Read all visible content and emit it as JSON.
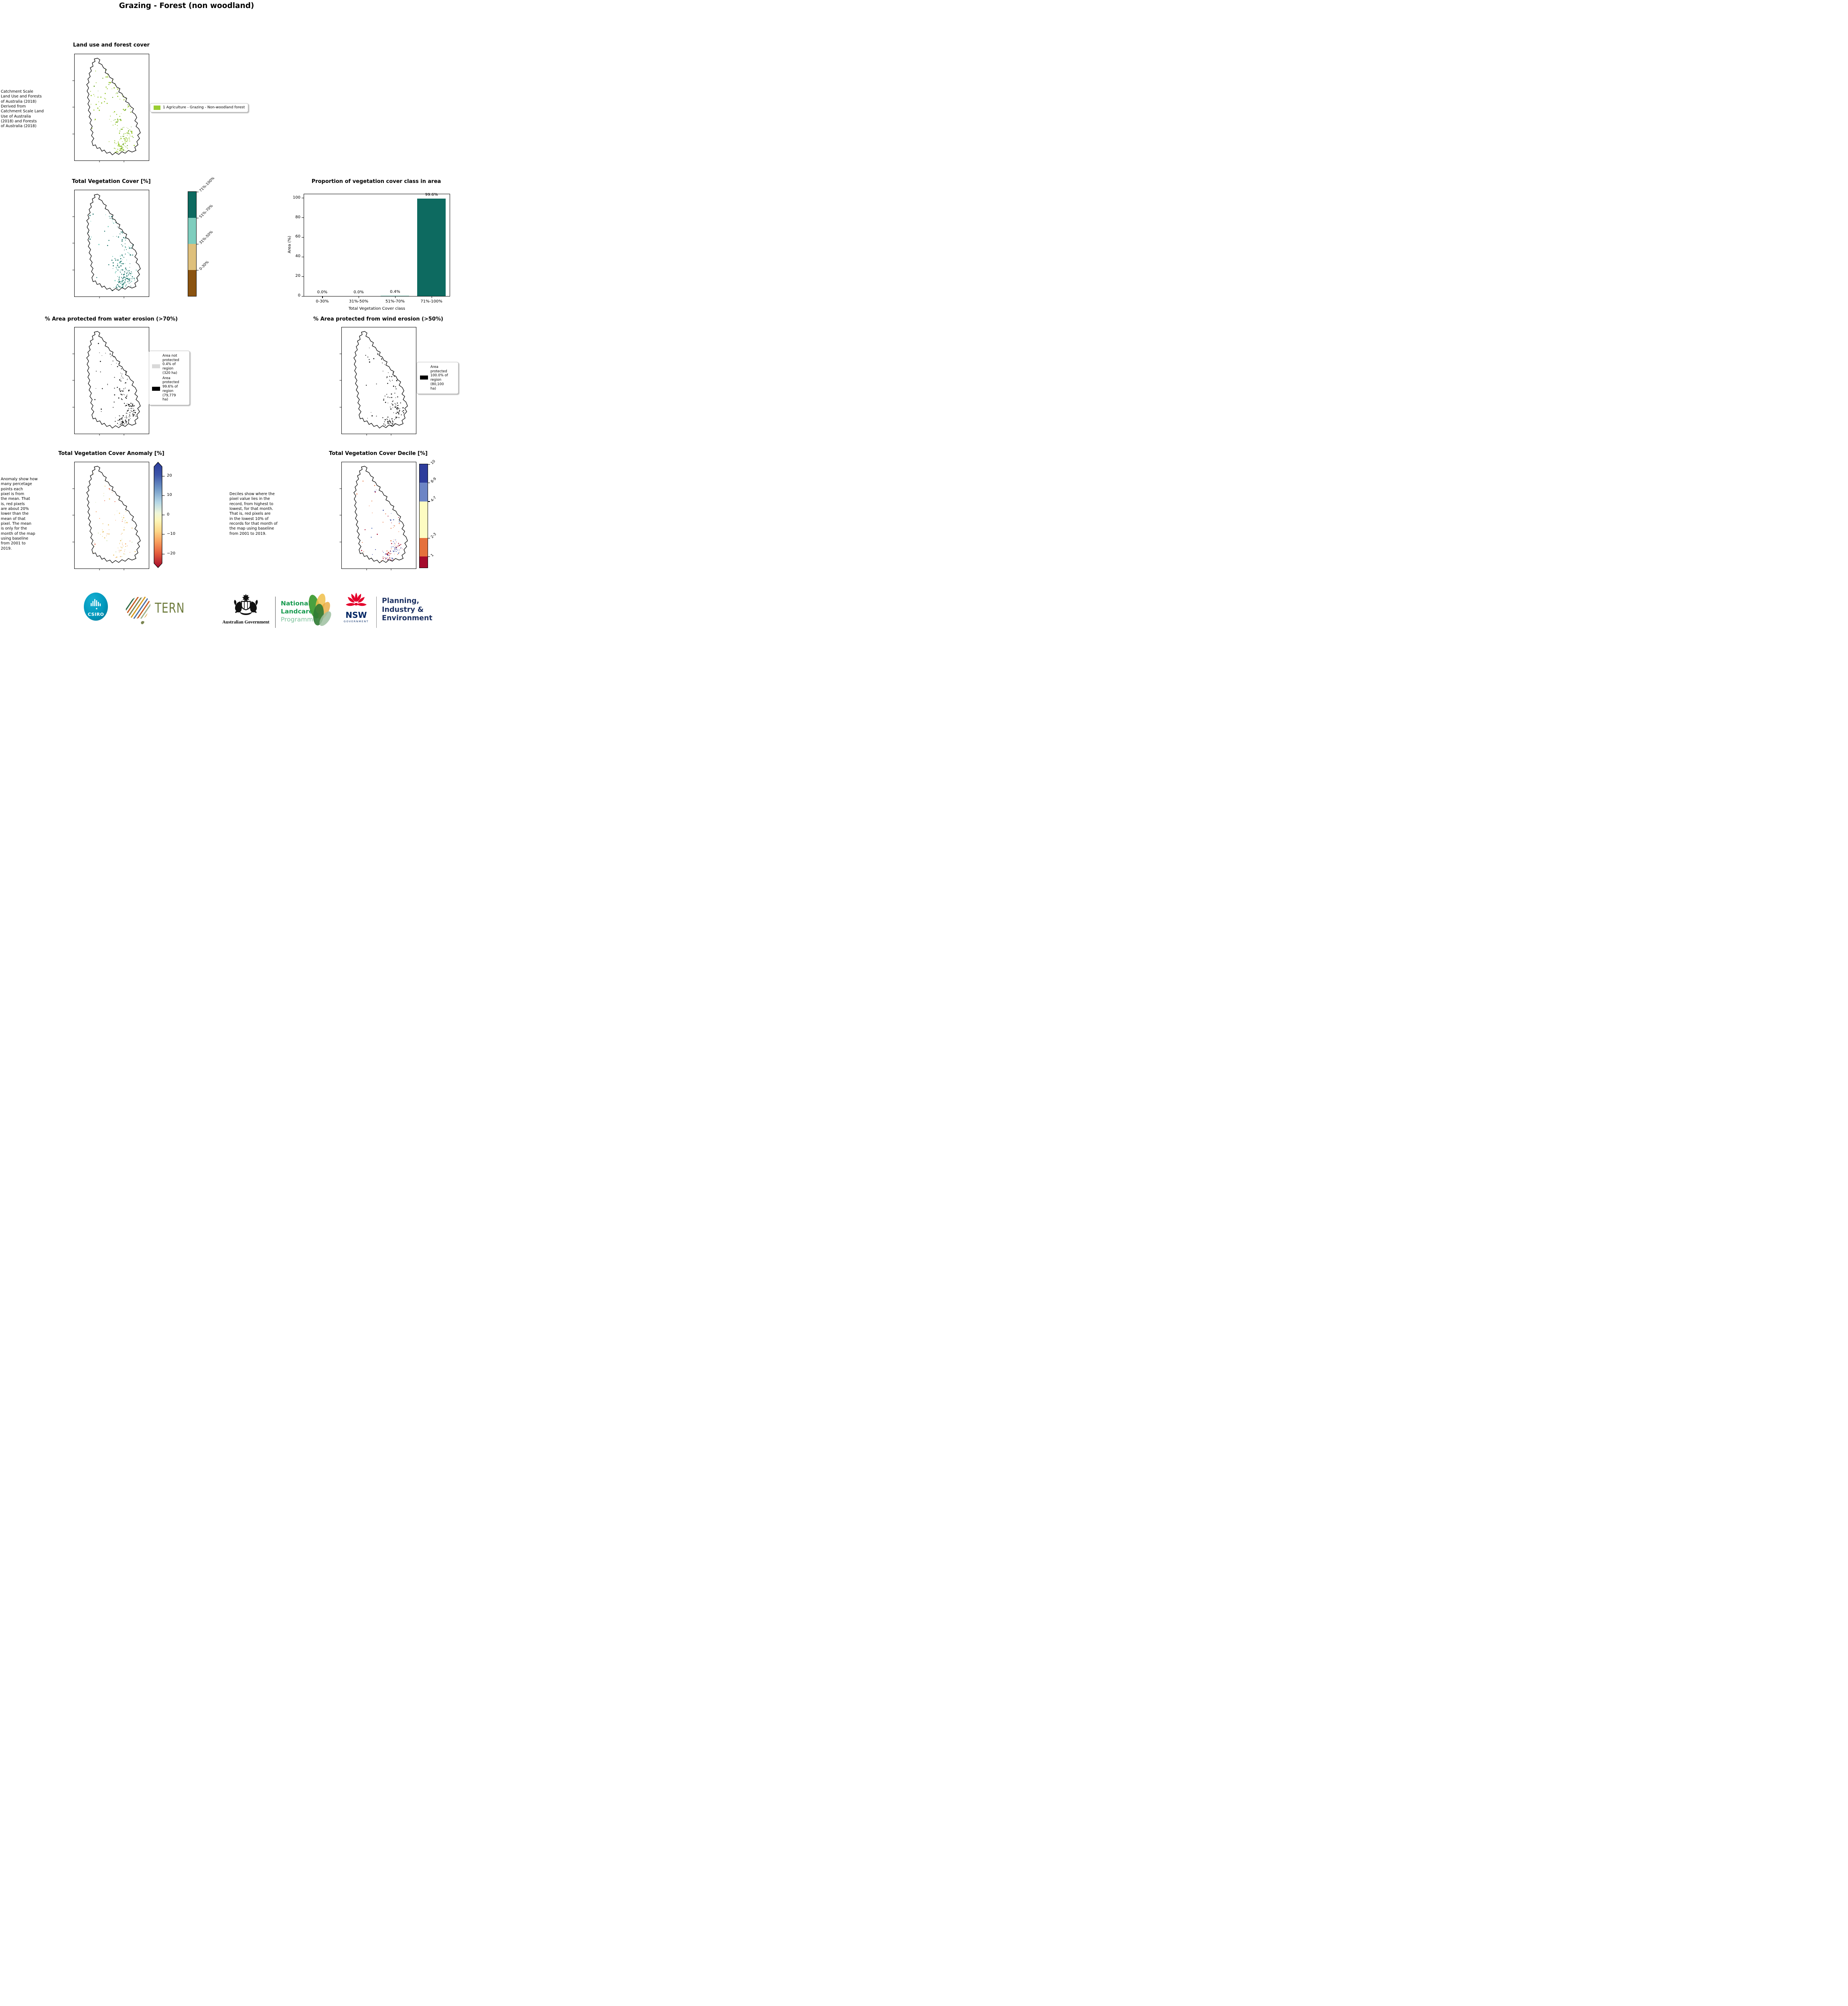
{
  "page": {
    "title": "Grazing - Forest (non woodland)"
  },
  "land_use": {
    "title": "Land use and forest cover",
    "source_note": " Catchment Scale\nLand Use and Forests\nof Australia (2018)\nDerived from\nCatchment Scale Land\nUse of Australia\n(2018) and Forests\nof Australia (2018)",
    "legend_label": "1 Agriculture - Grazing - Non-woodland forest",
    "legend_color": "#9acd32"
  },
  "veg_cover": {
    "title": "Total Vegetation Cover [%]",
    "colorbar": [
      {
        "label": "71%-100%",
        "color": "#0d6a60",
        "h": 25
      },
      {
        "label": "51%-70%",
        "color": "#7ecdbd",
        "h": 25
      },
      {
        "label": "31%-50%",
        "color": "#dec07c",
        "h": 25
      },
      {
        "label": "0-30%",
        "color": "#8a5310",
        "h": 25
      }
    ]
  },
  "chart_data": {
    "type": "bar",
    "title": "Proportion of vegetation cover class in area",
    "categories": [
      "0-30%",
      "31%-50%",
      "51%-70%",
      "71%-100%"
    ],
    "values": [
      0.0,
      0.0,
      0.4,
      99.6
    ],
    "bar_labels": [
      "0.0%",
      "0.0%",
      "0.4%",
      "99.6%"
    ],
    "bar_colors": [
      "#0d6a60",
      "#0d6a60",
      "#7ecdbd",
      "#0d6a60"
    ],
    "xlabel": "Total Vegetation Cover class",
    "ylabel": "Area (%)",
    "ylim": [
      0,
      104
    ],
    "yticks": [
      0,
      20,
      40,
      60,
      80,
      100
    ],
    "grid": false,
    "legend_position": "none"
  },
  "water_erosion": {
    "title": "% Area protected from water erosion (>70%)",
    "legend": [
      {
        "swatch_color": "#d9d9d9",
        "label": "Area not\nprotected\n0.4% of\nregion\n(320 ha)"
      },
      {
        "swatch_color": "#000000",
        "label": "Area\nprotected\n99.6% of\nregion\n(79,779\nha)"
      }
    ]
  },
  "wind_erosion": {
    "title": "% Area protected from wind erosion (>50%)",
    "legend": [
      {
        "swatch_color": "#000000",
        "label": "Area\nprotected\n100.0% of\nregion\n(80,100\nha)"
      }
    ]
  },
  "anomaly": {
    "title": "Total Vegetation Cover Anomaly [%]",
    "note": "Anomaly show how\nmany percetage\npoints each\npixel is from\nthe mean. That\nis, red pixels\nare about 20%\nlower than the\nmean of that\npixel. The mean\nis only for the\nmonth of the map\nusing baseline\nfrom 2001 to\n2019.",
    "colorbar_ticks": [
      {
        "label": "20",
        "pos": 0.1
      },
      {
        "label": "10",
        "pos": 0.3
      },
      {
        "label": "0",
        "pos": 0.5
      },
      {
        "label": "−10",
        "pos": 0.7
      },
      {
        "label": "−20",
        "pos": 0.905
      }
    ],
    "gradient_top_color": "#2b3c9b",
    "gradient_bottom_color": "#a30a2c"
  },
  "decile": {
    "title": "Total Vegetation Cover Decile [%]",
    "note": "Deciles show where the\npixel value lies in the\nrecord, from highest to\nlowest, for that month.\nThat is, red pixels are\nin the lowest 10% of\nrecords for that month of\nthe map using baseline\nfrom 2001 to 2019.",
    "colorbar": [
      {
        "label": "10",
        "color": "#2e3d9c",
        "h": 18.0
      },
      {
        "label": "8-9",
        "color": "#6d85c5",
        "h": 18.0
      },
      {
        "label": "4-7",
        "color": "#fdfcc2",
        "h": 35.5
      },
      {
        "label": "2-3",
        "color": "#e5713c",
        "h": 17.7
      },
      {
        "label": "1",
        "color": "#a50b2c",
        "h": 10.8
      }
    ]
  },
  "footer": {
    "csiro_label": "CSIRO",
    "tern_label": "TERN",
    "aus_gov_label": "Australian Government",
    "landcare_line1": "National",
    "landcare_line2": "Landcare",
    "landcare_line3": "Programme",
    "nsw_label": "NSW",
    "nsw_sub": "GOVERNMENT",
    "planning_line1": "Planning,",
    "planning_line2": "Industry &",
    "planning_line3": "Environment"
  }
}
